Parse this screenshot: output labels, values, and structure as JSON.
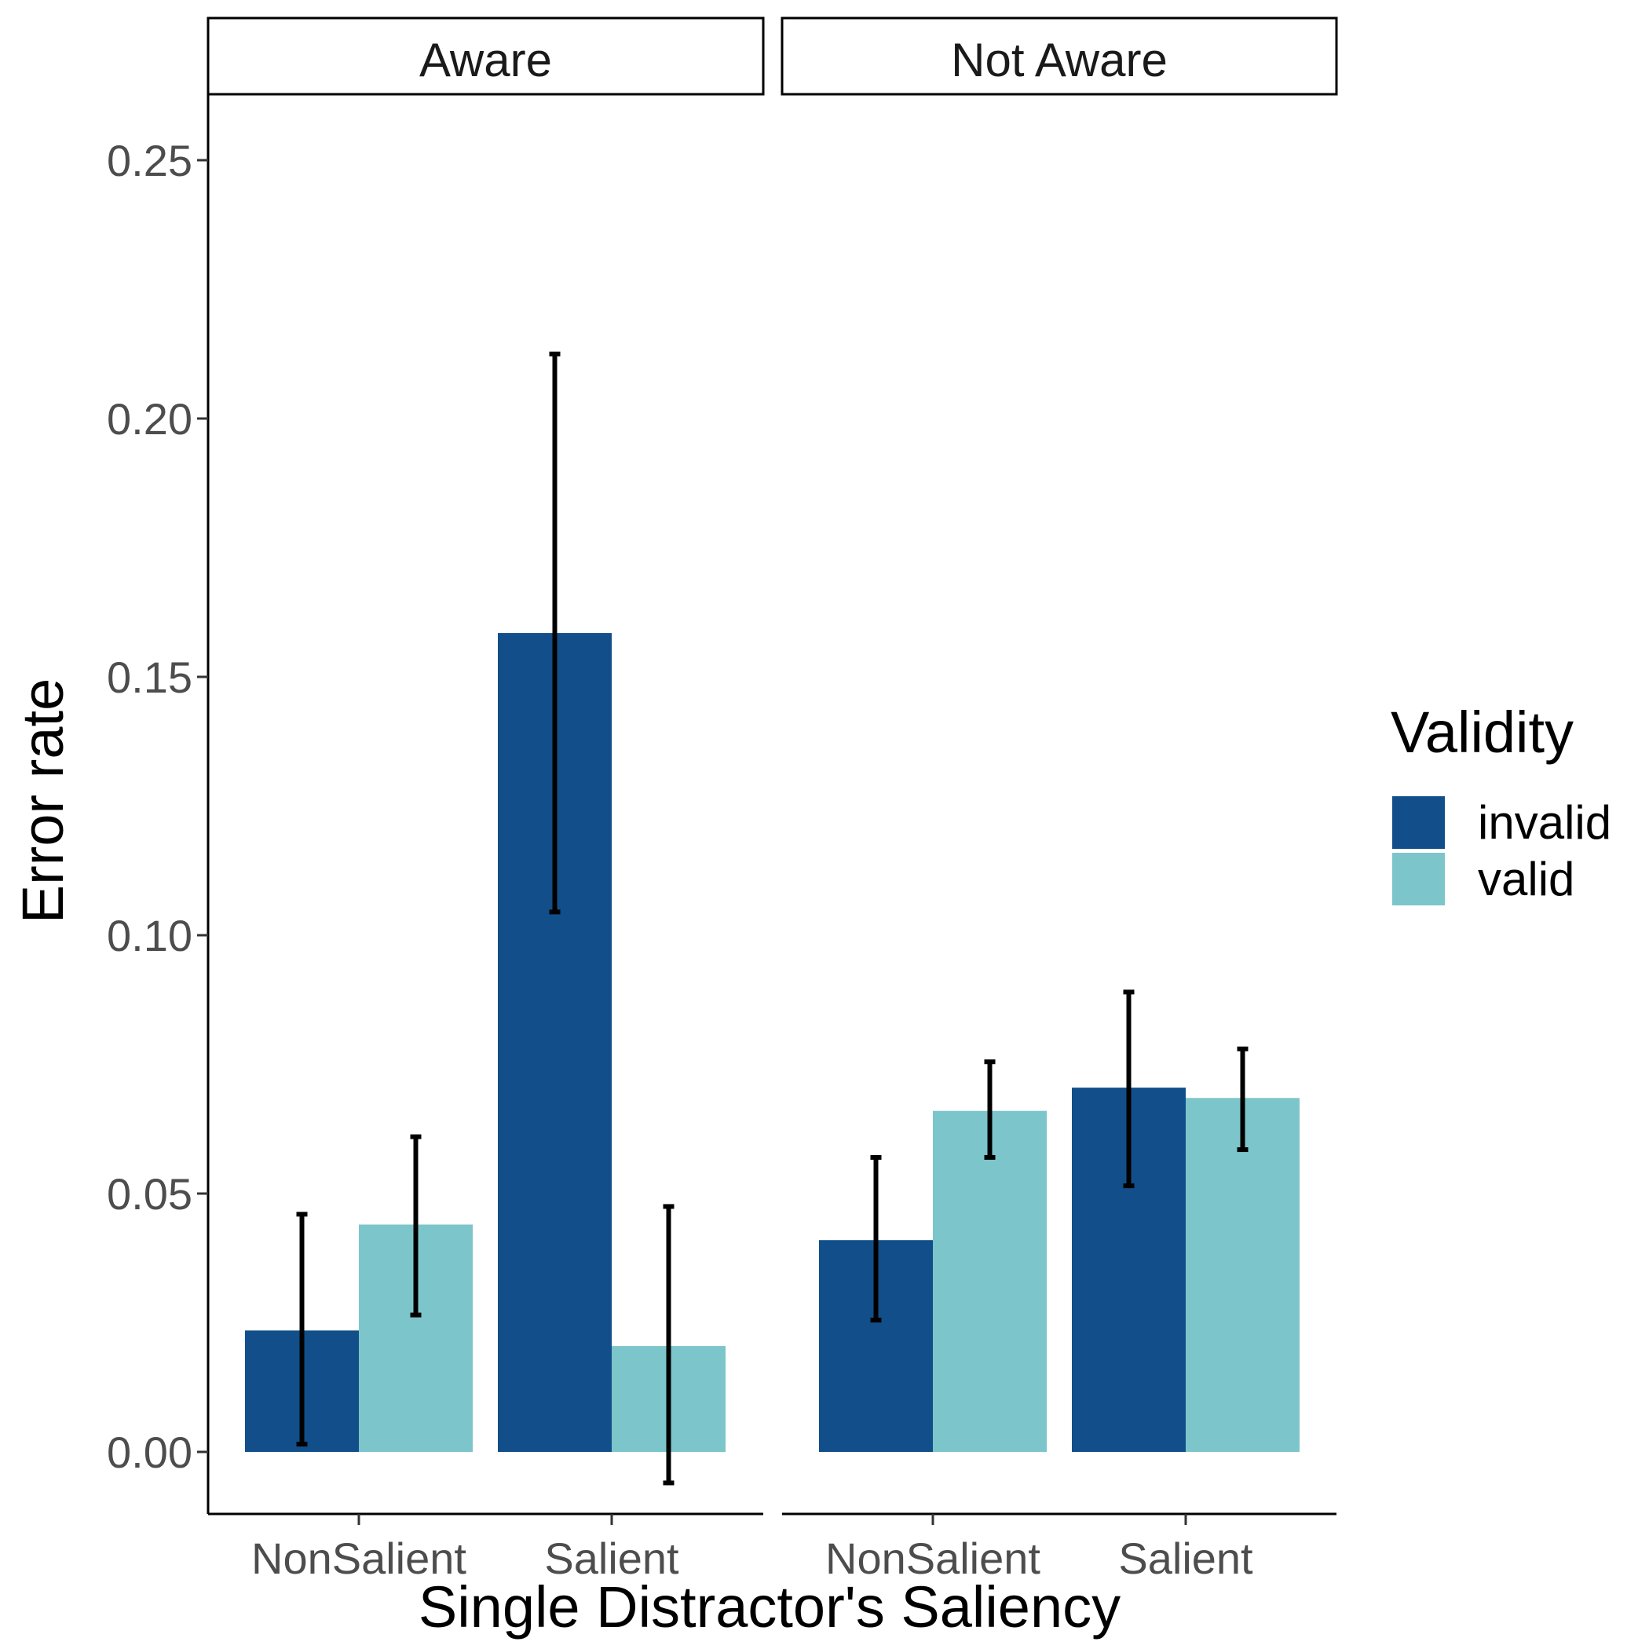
{
  "chart_data": {
    "type": "bar",
    "ylabel": "Error rate",
    "xlabel": "Single Distractor's Saliency",
    "ylim": [
      -0.012,
      0.262
    ],
    "yticks": [
      "0.00",
      "0.05",
      "0.10",
      "0.15",
      "0.20",
      "0.25"
    ],
    "ytick_values": [
      0,
      0.05,
      0.1,
      0.15,
      0.2,
      0.25
    ],
    "categories": [
      "NonSalient",
      "Salient"
    ],
    "grid": false,
    "legend": {
      "title": "Validity",
      "placement": "right",
      "entries": [
        "invalid",
        "valid"
      ]
    },
    "colors": {
      "invalid": "#124f8a",
      "valid": "#7cc5cb"
    },
    "panels": [
      {
        "label": "Aware",
        "series": [
          {
            "name": "invalid",
            "values": [
              0.0235,
              0.1585
            ],
            "err_low": [
              0.0015,
              0.1045
            ],
            "err_high": [
              0.046,
              0.2125
            ]
          },
          {
            "name": "valid",
            "values": [
              0.044,
              0.0205
            ],
            "err_low": [
              0.0265,
              -0.006
            ],
            "err_high": [
              0.061,
              0.0475
            ]
          }
        ]
      },
      {
        "label": "Not Aware",
        "series": [
          {
            "name": "invalid",
            "values": [
              0.041,
              0.0705
            ],
            "err_low": [
              0.0255,
              0.0515
            ],
            "err_high": [
              0.057,
              0.089
            ]
          },
          {
            "name": "valid",
            "values": [
              0.066,
              0.0685
            ],
            "err_low": [
              0.057,
              0.0585
            ],
            "err_high": [
              0.0755,
              0.078
            ]
          }
        ]
      }
    ]
  }
}
